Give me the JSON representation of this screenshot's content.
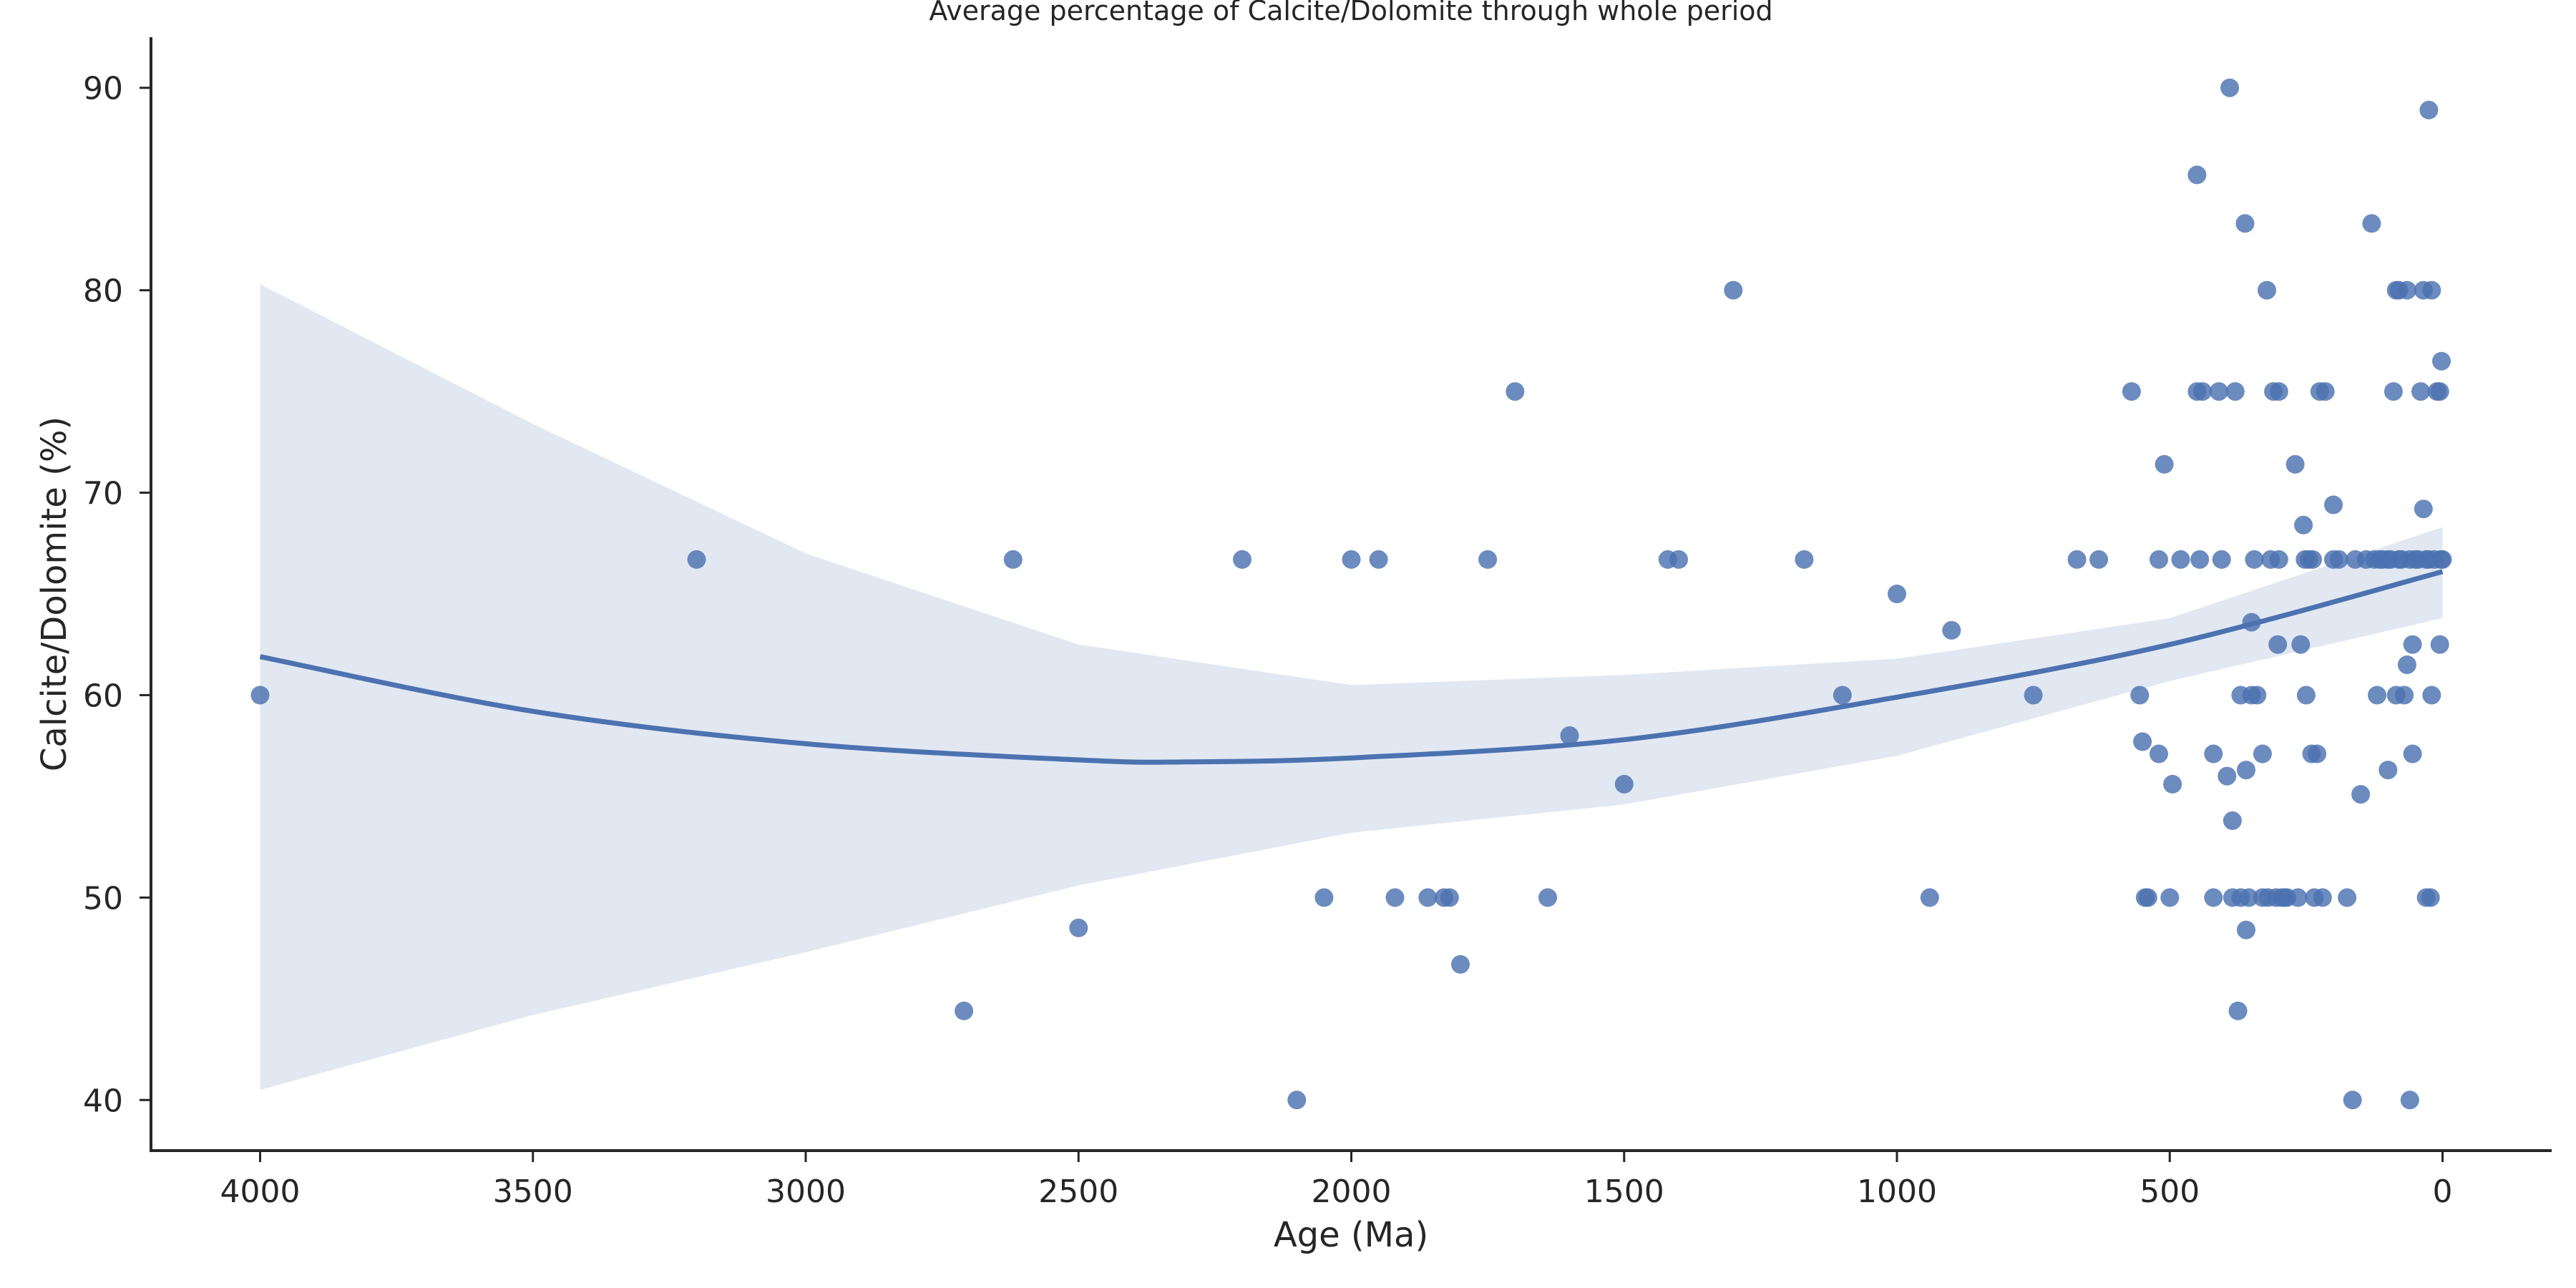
{
  "chart_data": {
    "type": "scatter",
    "title": "Average percentage of Calcite/Dolomite through whole period",
    "xlabel": "Age (Ma)",
    "ylabel": "Calcite/Dolomite (%)",
    "x_inverted": true,
    "xlim": [
      4200,
      -200
    ],
    "ylim": [
      37.5,
      92.5
    ],
    "xticks": [
      4000,
      3500,
      3000,
      2500,
      2000,
      1500,
      1000,
      500,
      0
    ],
    "yticks": [
      40,
      50,
      60,
      70,
      80,
      90
    ],
    "grid": false,
    "colors": {
      "points": "#4c72b0",
      "line": "#4c72b0",
      "band": "#4c72b0"
    },
    "points": [
      [
        4000,
        60
      ],
      [
        3200,
        66.7
      ],
      [
        2710,
        44.4
      ],
      [
        2620,
        66.7
      ],
      [
        2500,
        48.5
      ],
      [
        2200,
        66.7
      ],
      [
        2100,
        40
      ],
      [
        2050,
        50
      ],
      [
        2000,
        66.7
      ],
      [
        1950,
        66.7
      ],
      [
        1920,
        50
      ],
      [
        1860,
        50
      ],
      [
        1830,
        50
      ],
      [
        1820,
        50
      ],
      [
        1800,
        46.7
      ],
      [
        1750,
        66.7
      ],
      [
        1700,
        75
      ],
      [
        1640,
        50
      ],
      [
        1600,
        58
      ],
      [
        1500,
        55.6
      ],
      [
        1420,
        66.7
      ],
      [
        1400,
        66.7
      ],
      [
        1300,
        80
      ],
      [
        1170,
        66.7
      ],
      [
        1100,
        60
      ],
      [
        1000,
        65
      ],
      [
        940,
        50
      ],
      [
        900,
        63.2
      ],
      [
        750,
        60
      ],
      [
        670,
        66.7
      ],
      [
        630,
        66.7
      ],
      [
        570,
        75
      ],
      [
        555,
        60
      ],
      [
        550,
        57.7
      ],
      [
        545,
        50
      ],
      [
        540,
        50
      ],
      [
        520,
        57.1
      ],
      [
        520,
        66.7
      ],
      [
        510,
        71.4
      ],
      [
        500,
        50
      ],
      [
        495,
        55.6
      ],
      [
        480,
        66.7
      ],
      [
        450,
        85.7
      ],
      [
        450,
        75
      ],
      [
        445,
        66.7
      ],
      [
        440,
        75
      ],
      [
        420,
        57.1
      ],
      [
        420,
        50
      ],
      [
        410,
        75
      ],
      [
        405,
        66.7
      ],
      [
        395,
        56
      ],
      [
        390,
        90
      ],
      [
        385,
        53.8
      ],
      [
        385,
        50
      ],
      [
        380,
        75
      ],
      [
        375,
        44.4
      ],
      [
        370,
        50
      ],
      [
        370,
        60
      ],
      [
        362,
        83.3
      ],
      [
        360,
        48.4
      ],
      [
        360,
        56.3
      ],
      [
        355,
        50
      ],
      [
        350,
        63.6
      ],
      [
        350,
        60
      ],
      [
        345,
        66.7
      ],
      [
        340,
        60
      ],
      [
        330,
        57.1
      ],
      [
        330,
        50
      ],
      [
        322,
        80
      ],
      [
        320,
        50
      ],
      [
        315,
        66.7
      ],
      [
        310,
        75
      ],
      [
        305,
        50
      ],
      [
        302,
        62.5
      ],
      [
        300,
        75
      ],
      [
        300,
        66.7
      ],
      [
        295,
        50
      ],
      [
        290,
        50
      ],
      [
        285,
        50
      ],
      [
        270,
        71.4
      ],
      [
        265,
        50
      ],
      [
        260,
        62.5
      ],
      [
        255,
        68.4
      ],
      [
        252,
        66.7
      ],
      [
        250,
        60
      ],
      [
        245,
        66.7
      ],
      [
        240,
        57.1
      ],
      [
        238,
        66.7
      ],
      [
        235,
        50
      ],
      [
        230,
        57.1
      ],
      [
        225,
        75
      ],
      [
        220,
        50
      ],
      [
        215,
        75
      ],
      [
        200,
        69.4
      ],
      [
        200,
        66.7
      ],
      [
        190,
        66.7
      ],
      [
        175,
        50
      ],
      [
        165,
        40
      ],
      [
        160,
        66.7
      ],
      [
        150,
        55.1
      ],
      [
        140,
        66.7
      ],
      [
        130,
        83.3
      ],
      [
        125,
        66.7
      ],
      [
        120,
        60
      ],
      [
        115,
        66.7
      ],
      [
        110,
        66.7
      ],
      [
        100,
        56.3
      ],
      [
        100,
        66.7
      ],
      [
        95,
        66.7
      ],
      [
        90,
        75
      ],
      [
        85,
        80
      ],
      [
        85,
        60
      ],
      [
        80,
        80
      ],
      [
        80,
        66.7
      ],
      [
        75,
        66.7
      ],
      [
        70,
        60
      ],
      [
        65,
        61.5
      ],
      [
        65,
        80
      ],
      [
        60,
        40
      ],
      [
        60,
        66.7
      ],
      [
        55,
        57.1
      ],
      [
        55,
        62.5
      ],
      [
        50,
        66.7
      ],
      [
        45,
        66.7
      ],
      [
        40,
        75
      ],
      [
        35,
        80
      ],
      [
        35,
        69.2
      ],
      [
        30,
        50
      ],
      [
        30,
        66.7
      ],
      [
        25,
        88.9
      ],
      [
        25,
        66.7
      ],
      [
        22,
        50
      ],
      [
        20,
        60
      ],
      [
        20,
        80
      ],
      [
        15,
        66.7
      ],
      [
        10,
        75
      ],
      [
        5,
        75
      ],
      [
        5,
        62.5
      ],
      [
        3,
        66.7
      ],
      [
        2,
        76.5
      ],
      [
        0,
        66.7
      ]
    ],
    "fit_curve": {
      "x": [
        4000,
        3500,
        3000,
        2500,
        2300,
        2000,
        1500,
        1000,
        500,
        0
      ],
      "y": [
        61.9,
        59.2,
        57.6,
        56.8,
        56.7,
        56.9,
        57.8,
        59.9,
        62.5,
        66.1
      ]
    },
    "ci_band": {
      "x": [
        4000,
        3500,
        3000,
        2500,
        2000,
        1500,
        1000,
        500,
        0
      ],
      "lower": [
        40.5,
        44.2,
        47.3,
        50.6,
        53.2,
        54.6,
        57.0,
        60.7,
        63.8
      ],
      "upper": [
        80.3,
        73.4,
        67.0,
        62.5,
        60.5,
        61.0,
        61.8,
        63.8,
        68.3
      ]
    }
  }
}
